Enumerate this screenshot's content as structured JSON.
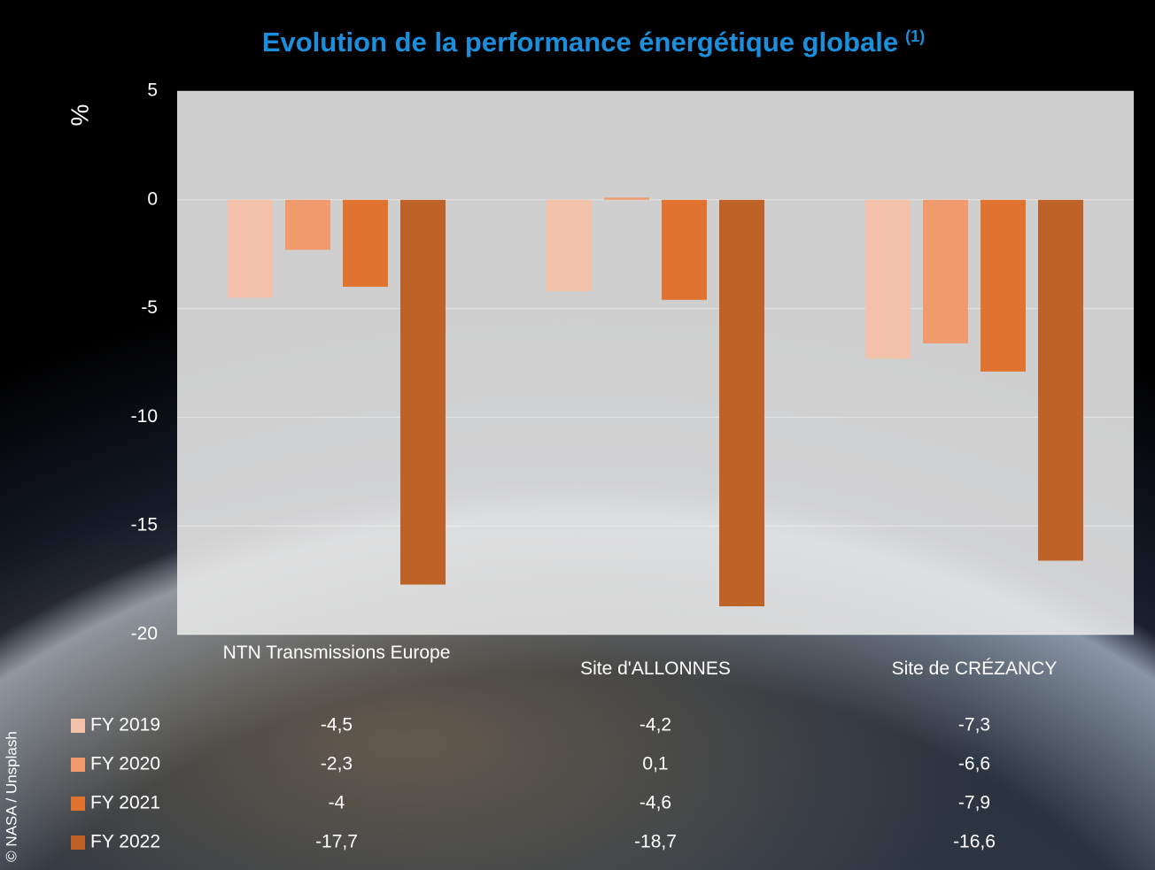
{
  "chart_data": {
    "type": "bar",
    "title": "Evolution de la performance énergétique globale",
    "title_note": "(1)",
    "y_label": "%",
    "credit": "© NASA / Unsplash",
    "categories": [
      "NTN Transmissions Europe",
      "Site d'ALLONNES",
      "Site de CRÉZANCY"
    ],
    "series": [
      {
        "name": "FY 2019",
        "color": "#f4c1ab",
        "values": [
          -4.5,
          -4.2,
          -7.3
        ],
        "value_labels": [
          "-4,5",
          "-4,2",
          "-7,3"
        ]
      },
      {
        "name": "FY 2020",
        "color": "#f09a6e",
        "values": [
          -2.3,
          0.1,
          -6.6
        ],
        "value_labels": [
          "-2,3",
          "0,1",
          "-6,6"
        ]
      },
      {
        "name": "FY 2021",
        "color": "#e0732f",
        "values": [
          -4,
          -4.6,
          -7.9
        ],
        "value_labels": [
          "-4",
          "-4,6",
          "-7,9"
        ]
      },
      {
        "name": "FY 2022",
        "color": "#bf6227",
        "values": [
          -17.7,
          -18.7,
          -16.6
        ],
        "value_labels": [
          "-17,7",
          "-18,7",
          "-16,6"
        ]
      }
    ],
    "ylim": [
      -20,
      5
    ],
    "yticks": [
      5,
      0,
      -5,
      -10,
      -15,
      -20
    ],
    "grid": true
  }
}
